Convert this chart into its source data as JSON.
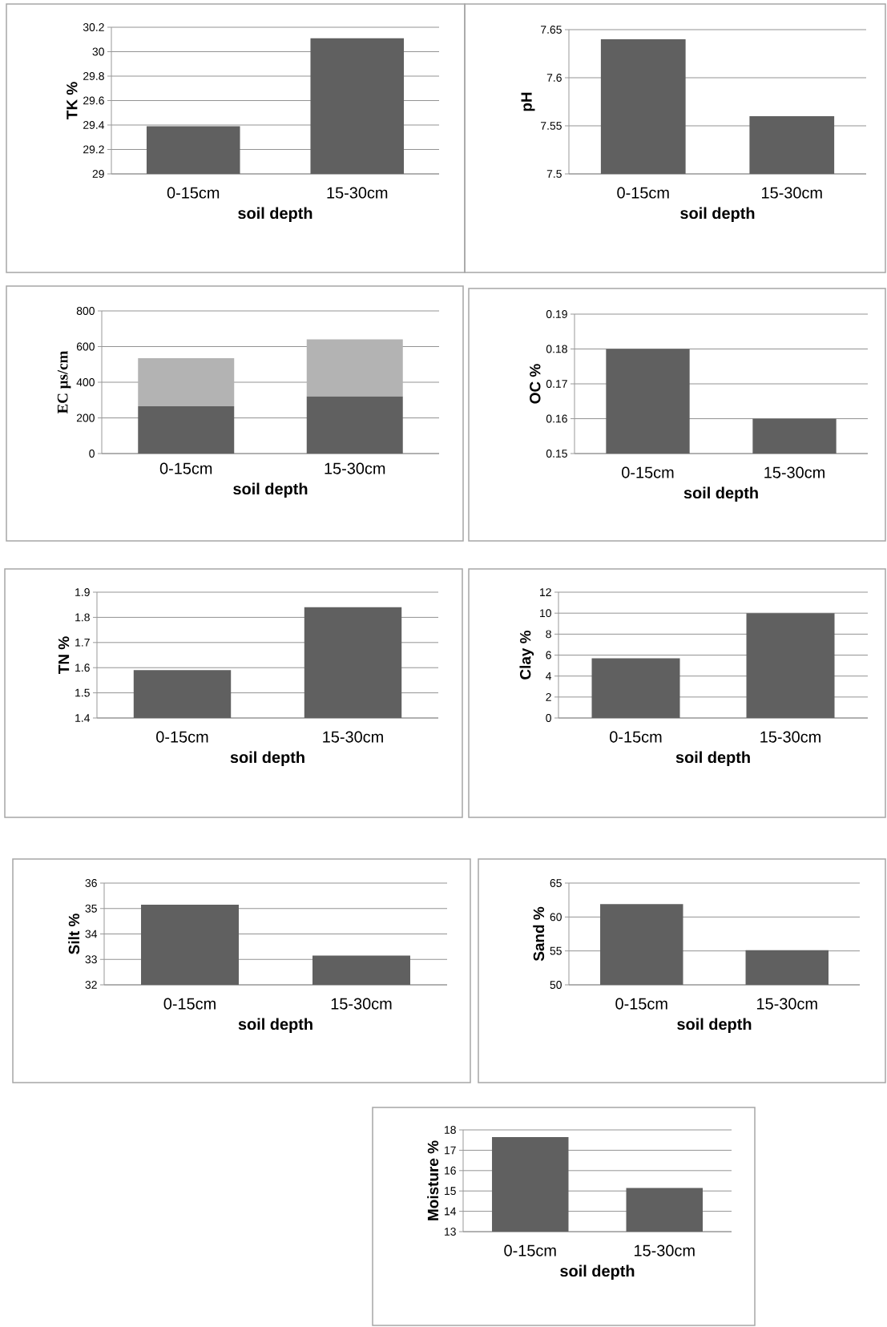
{
  "chart_data": [
    {
      "type": "bar",
      "xlabel": "soil depth",
      "ylabel": "TK %",
      "categories": [
        "0-15cm",
        "15-30cm"
      ],
      "values": [
        29.39,
        30.11
      ],
      "color": "#606060",
      "ylim": [
        29,
        30.2
      ],
      "yticks": [
        29,
        29.2,
        29.4,
        29.6,
        29.8,
        30,
        30.2
      ],
      "grid": "y"
    },
    {
      "type": "bar",
      "xlabel": "soil depth",
      "ylabel": "pH",
      "categories": [
        "0-15cm",
        "15-30cm"
      ],
      "values": [
        7.64,
        7.56
      ],
      "color": "#606060",
      "ylim": [
        7.5,
        7.65
      ],
      "yticks": [
        7.5,
        7.55,
        7.6,
        7.65
      ],
      "grid": "y"
    },
    {
      "type": "bar",
      "xlabel": "soil depth",
      "ylabel": "EC µs/cm",
      "categories": [
        "0-15cm",
        "15-30cm"
      ],
      "stacked": true,
      "series": [
        {
          "color": "#606060",
          "values": [
            265,
            320
          ]
        },
        {
          "color": "#b3b3b3",
          "values": [
            270,
            320
          ]
        }
      ],
      "ylim": [
        0,
        800
      ],
      "yticks": [
        0,
        200,
        400,
        600,
        800
      ],
      "grid": "y"
    },
    {
      "type": "bar",
      "xlabel": "soil depth",
      "ylabel": "OC %",
      "categories": [
        "0-15cm",
        "15-30cm"
      ],
      "values": [
        0.18,
        0.16
      ],
      "color": "#606060",
      "ylim": [
        0.15,
        0.19
      ],
      "yticks": [
        0.15,
        0.16,
        0.17,
        0.18,
        0.19
      ],
      "grid": "y"
    },
    {
      "type": "bar",
      "xlabel": "soil depth",
      "ylabel": "TN %",
      "categories": [
        "0-15cm",
        "15-30cm"
      ],
      "values": [
        1.59,
        1.84
      ],
      "color": "#606060",
      "ylim": [
        1.4,
        1.9
      ],
      "yticks": [
        1.4,
        1.5,
        1.6,
        1.7,
        1.8,
        1.9
      ],
      "grid": "y"
    },
    {
      "type": "bar",
      "xlabel": "soil depth",
      "ylabel": "Clay %",
      "categories": [
        "0-15cm",
        "15-30cm"
      ],
      "values": [
        5.7,
        10.0
      ],
      "color": "#606060",
      "ylim": [
        0,
        12
      ],
      "yticks": [
        0,
        2,
        4,
        6,
        8,
        10,
        12
      ],
      "grid": "y"
    },
    {
      "type": "bar",
      "xlabel": "soil depth",
      "ylabel": "Silt %",
      "categories": [
        "0-15cm",
        "15-30cm"
      ],
      "values": [
        35.15,
        33.15
      ],
      "color": "#606060",
      "ylim": [
        32,
        36
      ],
      "yticks": [
        32,
        33,
        34,
        35,
        36
      ],
      "grid": "y"
    },
    {
      "type": "bar",
      "xlabel": "soil depth",
      "ylabel": "Sand %",
      "categories": [
        "0-15cm",
        "15-30cm"
      ],
      "values": [
        61.9,
        55.1
      ],
      "color": "#606060",
      "ylim": [
        50,
        65
      ],
      "yticks": [
        50,
        55,
        60,
        65
      ],
      "grid": "y"
    },
    {
      "type": "bar",
      "xlabel": "soil depth",
      "ylabel": "Moisture %",
      "categories": [
        "0-15cm",
        "15-30cm"
      ],
      "values": [
        17.65,
        15.15
      ],
      "color": "#606060",
      "ylim": [
        13,
        18
      ],
      "yticks": [
        13,
        14,
        15,
        16,
        17,
        18
      ],
      "grid": "y"
    }
  ]
}
